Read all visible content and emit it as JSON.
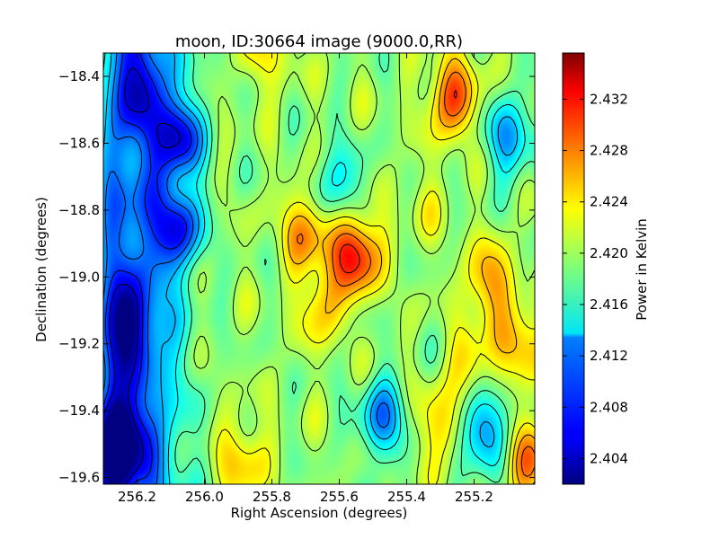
{
  "chart_data": {
    "type": "heatmap",
    "title": "moon, ID:30664 image (9000.0,RR)",
    "xlabel": "Right Ascension (degrees)",
    "ylabel": "Declination (degrees)",
    "colorbar_label": "Power in Kelvin",
    "colormap": "jet",
    "x_range": [
      256.3,
      255.02
    ],
    "y_range": [
      -19.62,
      -18.33
    ],
    "x_ticks": [
      "256.2",
      "256.0",
      "255.8",
      "255.6",
      "255.4",
      "255.2"
    ],
    "x_tick_values": [
      256.2,
      256.0,
      255.8,
      255.6,
      255.4,
      255.2
    ],
    "y_ticks": [
      "−18.4",
      "−18.6",
      "−18.8",
      "−19.0",
      "−19.2",
      "−19.4",
      "−19.6"
    ],
    "y_tick_values": [
      -18.4,
      -18.6,
      -18.8,
      -19.0,
      -19.2,
      -19.4,
      -19.6
    ],
    "colorbar_range": [
      2.402,
      2.4356
    ],
    "colorbar_ticks": [
      "2.404",
      "2.408",
      "2.412",
      "2.416",
      "2.420",
      "2.424",
      "2.428",
      "2.432"
    ],
    "colorbar_tick_values": [
      2.404,
      2.408,
      2.412,
      2.416,
      2.42,
      2.424,
      2.428,
      2.432
    ],
    "contours": true,
    "features": [
      {
        "ra": 255.55,
        "dec": -18.93,
        "value": 2.434
      },
      {
        "ra": 255.7,
        "dec": -18.86,
        "value": 2.428
      },
      {
        "ra": 255.26,
        "dec": -18.46,
        "value": 2.431
      },
      {
        "ra": 255.15,
        "dec": -19.02,
        "value": 2.428
      },
      {
        "ra": 255.65,
        "dec": -19.08,
        "value": 2.426
      },
      {
        "ra": 255.2,
        "dec": -19.27,
        "value": 2.425
      },
      {
        "ra": 255.05,
        "dec": -19.2,
        "value": 2.427
      },
      {
        "ra": 255.04,
        "dec": -19.55,
        "value": 2.428
      },
      {
        "ra": 255.3,
        "dec": -19.45,
        "value": 2.426
      },
      {
        "ra": 256.08,
        "dec": -18.58,
        "value": 2.406
      },
      {
        "ra": 256.08,
        "dec": -18.85,
        "value": 2.408
      },
      {
        "ra": 256.26,
        "dec": -19.5,
        "value": 2.403
      },
      {
        "ra": 256.24,
        "dec": -19.15,
        "value": 2.41
      },
      {
        "ra": 256.2,
        "dec": -18.42,
        "value": 2.412
      },
      {
        "ra": 255.6,
        "dec": -18.72,
        "value": 2.413
      },
      {
        "ra": 255.47,
        "dec": -19.43,
        "value": 2.409
      },
      {
        "ra": 255.17,
        "dec": -19.46,
        "value": 2.408
      },
      {
        "ra": 255.09,
        "dec": -18.58,
        "value": 2.41
      },
      {
        "ra": 255.82,
        "dec": -18.33,
        "value": 2.424
      },
      {
        "ra": 255.89,
        "dec": -19.55,
        "value": 2.426
      },
      {
        "ra": 255.34,
        "dec": -18.78,
        "value": 2.422
      }
    ]
  }
}
